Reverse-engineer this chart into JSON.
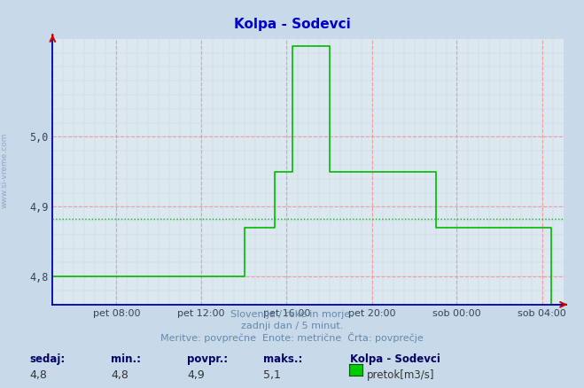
{
  "title": "Kolpa - Sodevci",
  "title_color": "#0000cc",
  "bg_color": "#c8daea",
  "plot_bg_color": "#dce8f0",
  "grid_major_color": "#ff8888",
  "grid_minor_color": "#b8c8d8",
  "line_color": "#00bb00",
  "avg_line_color": "#00bb00",
  "avg_value": 4.883,
  "ylim": [
    4.76,
    5.14
  ],
  "yticks": [
    4.8,
    4.9,
    5.0
  ],
  "footer_color": "#6688aa",
  "footer_line1": "Slovenija / reke in morje.",
  "footer_line2": "zadnji dan / 5 minut.",
  "footer_line3": "Meritve: povprečne  Enote: metrične  Črta: povprečje",
  "stats_labels": [
    "sedaj:",
    "min.:",
    "povpr.:",
    "maks.:"
  ],
  "stats_values": [
    "4,8",
    "4,8",
    "4,9",
    "5,1"
  ],
  "legend_title": "Kolpa - Sodevci",
  "legend_label": "pretok[m3/s]",
  "legend_color": "#00cc00",
  "axis_color": "#0000aa",
  "xtick_labels": [
    "pet 08:00",
    "pet 12:00",
    "pet 16:00",
    "pet 20:00",
    "sob 00:00",
    "sob 04:00"
  ],
  "xtick_positions": [
    0.125,
    0.291,
    0.458,
    0.625,
    0.791,
    0.958
  ],
  "time_points": [
    0.0,
    0.125,
    0.291,
    0.291,
    0.375,
    0.375,
    0.395,
    0.395,
    0.435,
    0.435,
    0.455,
    0.455,
    0.47,
    0.47,
    0.505,
    0.505,
    0.542,
    0.542,
    0.625,
    0.625,
    0.75,
    0.75,
    0.833,
    0.833,
    0.958,
    0.958,
    0.975,
    0.975,
    1.0
  ],
  "flow_values": [
    4.8,
    4.8,
    4.8,
    4.8,
    4.8,
    4.87,
    4.87,
    4.87,
    4.87,
    4.95,
    4.95,
    4.95,
    4.95,
    5.13,
    5.13,
    5.13,
    5.13,
    4.95,
    4.95,
    4.95,
    4.95,
    4.87,
    4.87,
    4.87,
    4.87,
    4.87,
    4.87,
    4.76,
    4.76
  ]
}
